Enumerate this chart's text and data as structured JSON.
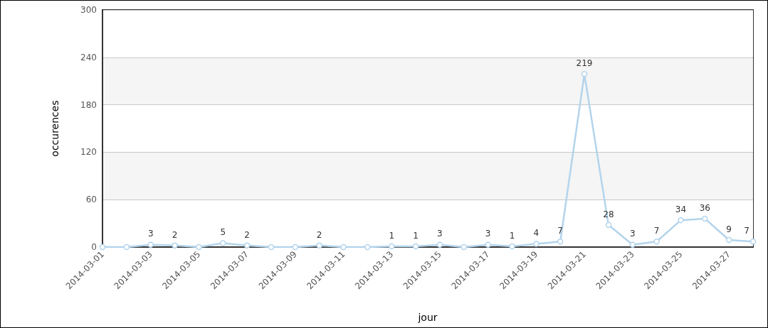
{
  "chart_data": {
    "type": "line",
    "xlabel": "jour",
    "ylabel": "occurences",
    "categories": [
      "2014-03-01",
      null,
      "2014-03-03",
      null,
      "2014-03-05",
      null,
      "2014-03-07",
      null,
      "2014-03-09",
      null,
      "2014-03-11",
      null,
      "2014-03-13",
      null,
      "2014-03-15",
      null,
      "2014-03-17",
      null,
      "2014-03-19",
      null,
      "2014-03-21",
      null,
      "2014-03-23",
      null,
      "2014-03-25",
      null,
      "2014-03-27",
      null
    ],
    "series": [
      {
        "color": "#b3d4ec",
        "values": [
          0,
          0,
          3,
          2,
          0,
          5,
          2,
          0,
          0,
          2,
          0,
          0,
          1,
          1,
          3,
          0,
          3,
          1,
          4,
          7,
          219,
          28,
          3,
          7,
          34,
          36,
          9,
          7
        ],
        "value_labels": [
          null,
          null,
          "3",
          "2",
          null,
          "5",
          "2",
          null,
          null,
          "2",
          null,
          null,
          "1",
          "1",
          "3",
          null,
          "3",
          "1",
          "4",
          "7",
          "219",
          "28",
          "3",
          "7",
          "34",
          "36",
          "9",
          "7"
        ]
      }
    ],
    "ylim": [
      0,
      300
    ],
    "yticks": [
      0,
      60,
      120,
      180,
      240,
      300
    ],
    "grid": "y",
    "marker": "circle",
    "line_style": "solid"
  }
}
